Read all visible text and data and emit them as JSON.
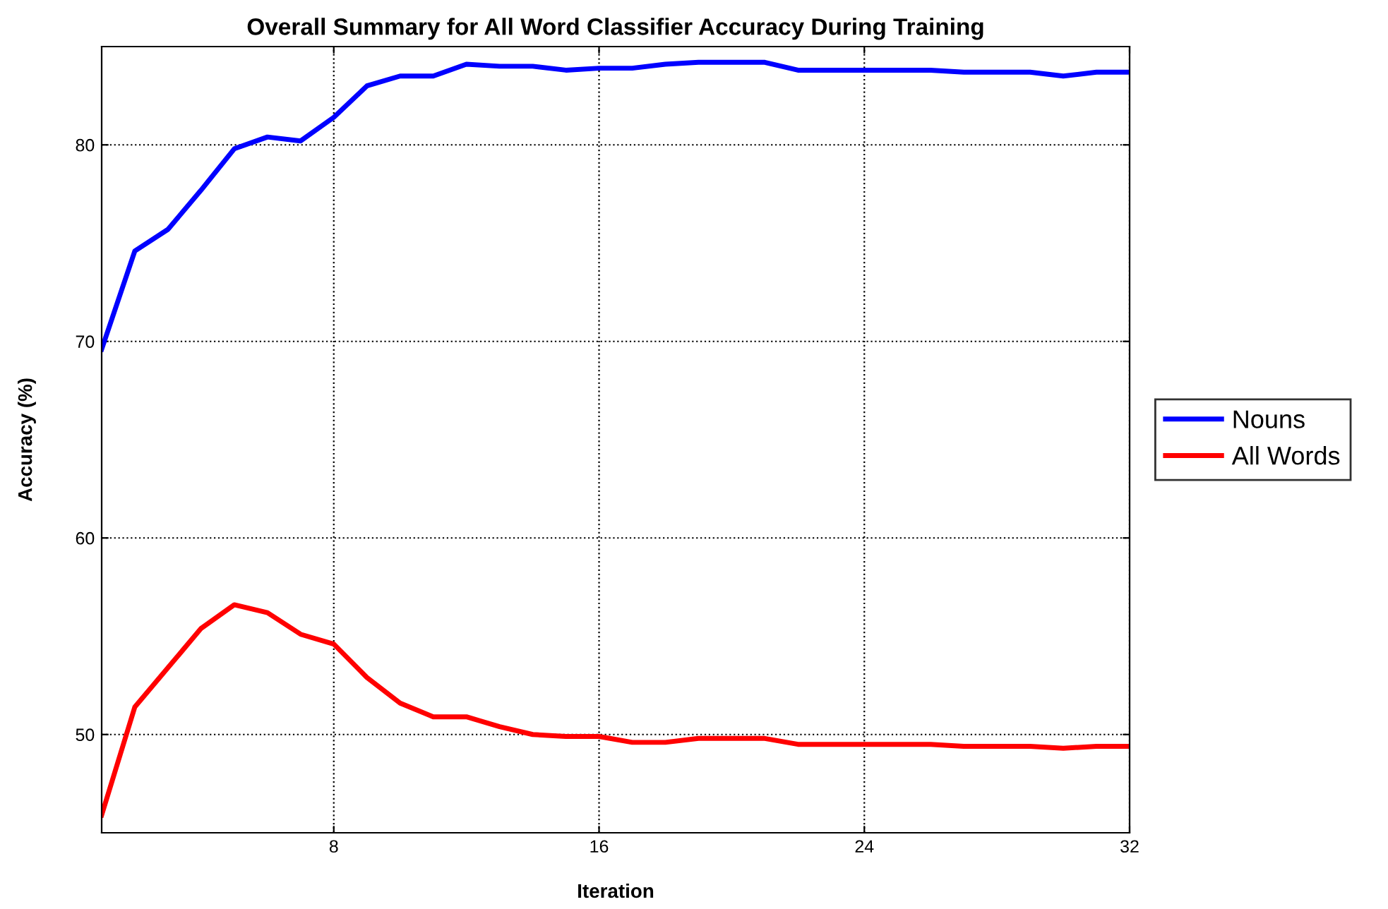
{
  "chart_data": {
    "type": "line",
    "title": "Overall Summary for All Word Classifier Accuracy During Training",
    "xlabel": "Iteration",
    "ylabel": "Accuracy (%)",
    "x": [
      1,
      2,
      3,
      4,
      5,
      6,
      7,
      8,
      9,
      10,
      11,
      12,
      13,
      14,
      15,
      16,
      17,
      18,
      19,
      20,
      21,
      22,
      23,
      24,
      25,
      26,
      27,
      28,
      29,
      30,
      31,
      32
    ],
    "series": [
      {
        "name": "Nouns",
        "color": "#0000ff",
        "values": [
          69.6,
          74.6,
          75.7,
          77.7,
          79.8,
          80.4,
          80.2,
          81.4,
          83.0,
          83.5,
          83.5,
          84.1,
          84.0,
          84.0,
          83.8,
          83.9,
          83.9,
          84.1,
          84.2,
          84.2,
          84.2,
          83.8,
          83.8,
          83.8,
          83.8,
          83.8,
          83.7,
          83.7,
          83.7,
          83.5,
          83.7,
          83.7
        ]
      },
      {
        "name": "All Words",
        "color": "#ff0000",
        "values": [
          45.9,
          51.4,
          53.4,
          55.4,
          56.6,
          56.2,
          55.1,
          54.6,
          52.9,
          51.6,
          50.9,
          50.9,
          50.4,
          50.0,
          49.9,
          49.9,
          49.6,
          49.6,
          49.8,
          49.8,
          49.8,
          49.5,
          49.5,
          49.5,
          49.5,
          49.5,
          49.4,
          49.4,
          49.4,
          49.3,
          49.4,
          49.4
        ]
      }
    ],
    "xlim": [
      1,
      32
    ],
    "xticks": [
      8,
      16,
      24,
      32
    ],
    "ylim": [
      45,
      85
    ],
    "yticks": [
      50,
      60,
      70,
      80
    ],
    "grid": true,
    "legend": "right",
    "marker": "none",
    "line_style": "solid"
  }
}
